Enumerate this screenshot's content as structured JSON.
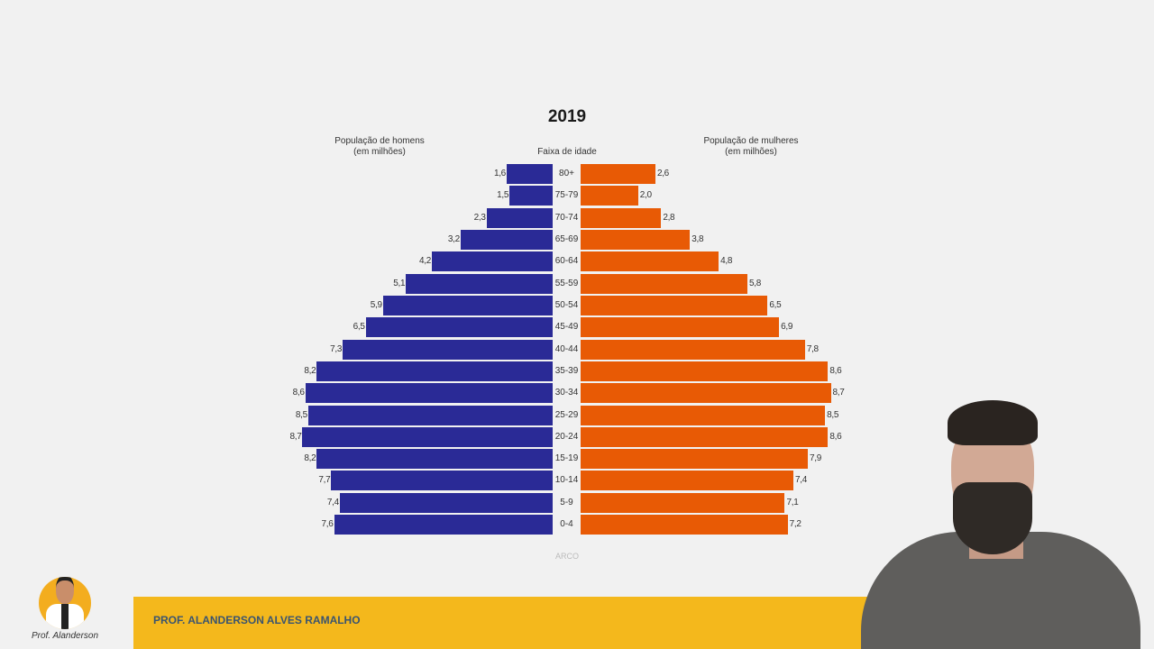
{
  "header": {
    "title": "2019"
  },
  "footer": {
    "banner_text": "PROF. ALANDERSON ALVES RAMALHO",
    "logo_text": "Prof. Alanderson"
  },
  "chart_data": {
    "type": "bar",
    "subtype": "population-pyramid",
    "title": "2019",
    "left_label": "População de homens\n(em milhões)",
    "left_label_lines": [
      "População de homens",
      "(em milhões)"
    ],
    "right_label_lines": [
      "População de mulheres",
      "(em milhões)"
    ],
    "center_label": "Faixa de idade",
    "source": "ARCO",
    "categories": [
      "80+",
      "75-79",
      "70-74",
      "65-69",
      "60-64",
      "55-59",
      "50-54",
      "45-49",
      "40-44",
      "35-39",
      "30-34",
      "25-29",
      "20-24",
      "15-19",
      "10-14",
      "5-9",
      "0-4"
    ],
    "series": [
      {
        "name": "Homens",
        "color": "#2a2a96",
        "values": [
          1.6,
          1.5,
          2.3,
          3.2,
          4.2,
          5.1,
          5.9,
          6.5,
          7.3,
          8.2,
          8.6,
          8.5,
          8.7,
          8.2,
          7.7,
          7.4,
          7.6
        ],
        "labels": [
          "1,6",
          "1,5",
          "2,3",
          "3,2",
          "4,2",
          "5,1",
          "5,9",
          "6,5",
          "7,3",
          "8,2",
          "8,6",
          "8,5",
          "8,7",
          "8,2",
          "7,7",
          "7,4",
          "7,6"
        ]
      },
      {
        "name": "Mulheres",
        "color": "#e85a05",
        "values": [
          2.6,
          2.0,
          2.8,
          3.8,
          4.8,
          5.8,
          6.5,
          6.9,
          7.8,
          8.6,
          8.7,
          8.5,
          8.6,
          7.9,
          7.4,
          7.1,
          7.2
        ],
        "labels": [
          "2,6",
          "2,0",
          "2,8",
          "3,8",
          "4,8",
          "5,8",
          "6,5",
          "6,9",
          "7,8",
          "8,6",
          "8,7",
          "8,5",
          "8,6",
          "7,9",
          "7,4",
          "7,1",
          "7,2"
        ]
      }
    ]
  }
}
